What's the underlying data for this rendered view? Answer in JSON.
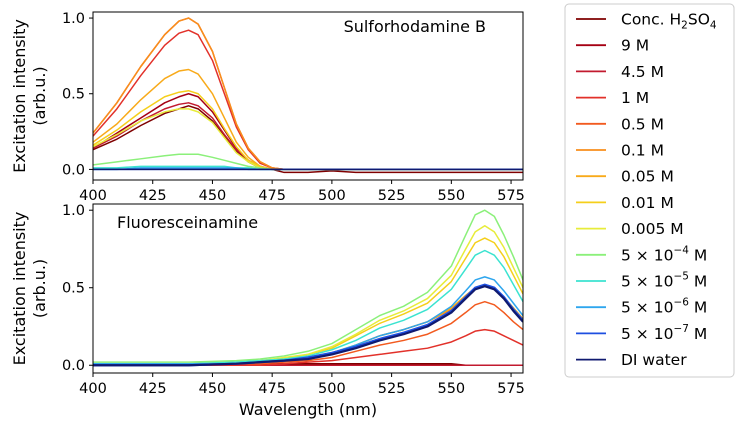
{
  "chart_data": [
    {
      "type": "line",
      "title": "Sulforhodamine B",
      "xlabel": "",
      "ylabel": [
        "Excitation intensity",
        "(arb.u.)"
      ],
      "xlim": [
        400,
        580
      ],
      "ylim": [
        -0.07,
        1.04
      ],
      "xticks": [
        "400",
        "425",
        "450",
        "475",
        "500",
        "525",
        "550",
        "575"
      ],
      "yticks": [
        "0.0",
        "0.5",
        "1.0"
      ],
      "x": [
        400,
        410,
        420,
        430,
        436,
        440,
        444,
        450,
        455,
        460,
        465,
        470,
        475,
        480,
        490,
        500,
        510,
        520,
        530,
        540,
        550,
        560,
        570,
        580
      ],
      "series": [
        {
          "name": "Conc. H2SO4",
          "color": "#7f0000",
          "values": [
            0.13,
            0.2,
            0.29,
            0.37,
            0.4,
            0.42,
            0.4,
            0.32,
            0.22,
            0.12,
            0.05,
            0.01,
            0.0,
            -0.02,
            -0.02,
            -0.01,
            -0.02,
            -0.02,
            -0.02,
            -0.02,
            -0.02,
            -0.02,
            -0.02,
            -0.02
          ]
        },
        {
          "name": "9 M",
          "color": "#a50013",
          "values": [
            0.14,
            0.24,
            0.34,
            0.44,
            0.48,
            0.5,
            0.48,
            0.38,
            0.26,
            0.14,
            0.06,
            0.02,
            0.0,
            0.0,
            0.0,
            0.0,
            0.0,
            0.0,
            0.0,
            0.0,
            0.0,
            0.0,
            0.0,
            0.0
          ]
        },
        {
          "name": "4.5 M",
          "color": "#c21a2f",
          "values": [
            0.14,
            0.22,
            0.32,
            0.4,
            0.43,
            0.44,
            0.42,
            0.34,
            0.23,
            0.13,
            0.06,
            0.02,
            0.0,
            0.0,
            0.0,
            0.0,
            0.0,
            0.0,
            0.0,
            0.0,
            0.0,
            0.0,
            0.0,
            0.0
          ]
        },
        {
          "name": "1 M",
          "color": "#e2312a",
          "values": [
            0.22,
            0.4,
            0.62,
            0.82,
            0.9,
            0.92,
            0.89,
            0.72,
            0.5,
            0.28,
            0.13,
            0.04,
            0.01,
            0.0,
            0.0,
            0.0,
            0.0,
            0.0,
            0.0,
            0.0,
            0.0,
            0.0,
            0.0,
            0.0
          ]
        },
        {
          "name": "0.5 M",
          "color": "#f25a1f",
          "values": [
            0.24,
            0.44,
            0.68,
            0.89,
            0.98,
            1.0,
            0.96,
            0.78,
            0.54,
            0.3,
            0.14,
            0.05,
            0.01,
            0.0,
            0.0,
            0.0,
            0.0,
            0.0,
            0.0,
            0.0,
            0.0,
            0.0,
            0.0,
            0.0
          ]
        },
        {
          "name": "0.1 M",
          "color": "#f88e1c",
          "values": [
            0.24,
            0.44,
            0.68,
            0.89,
            0.98,
            1.0,
            0.96,
            0.78,
            0.54,
            0.3,
            0.14,
            0.05,
            0.01,
            0.0,
            0.0,
            0.0,
            0.0,
            0.0,
            0.0,
            0.0,
            0.0,
            0.0,
            0.0,
            0.0
          ]
        },
        {
          "name": "0.05 M",
          "color": "#f8aa1a",
          "values": [
            0.18,
            0.3,
            0.46,
            0.6,
            0.65,
            0.66,
            0.63,
            0.5,
            0.34,
            0.18,
            0.08,
            0.02,
            0.0,
            0.0,
            0.0,
            0.0,
            0.0,
            0.0,
            0.0,
            0.0,
            0.0,
            0.0,
            0.0,
            0.0
          ]
        },
        {
          "name": "0.01 M",
          "color": "#f5cf1b",
          "values": [
            0.16,
            0.26,
            0.38,
            0.48,
            0.51,
            0.52,
            0.5,
            0.4,
            0.27,
            0.15,
            0.06,
            0.02,
            0.0,
            0.0,
            0.0,
            0.0,
            0.0,
            0.0,
            0.0,
            0.0,
            0.0,
            0.0,
            0.0,
            0.0
          ]
        },
        {
          "name": "0.005 M",
          "color": "#e7ec3a",
          "values": [
            0.15,
            0.23,
            0.32,
            0.38,
            0.4,
            0.4,
            0.38,
            0.31,
            0.21,
            0.11,
            0.05,
            0.01,
            0.0,
            0.0,
            0.0,
            0.0,
            0.0,
            0.0,
            0.0,
            0.0,
            0.0,
            0.0,
            0.0,
            0.0
          ]
        },
        {
          "name": "5 × 10⁻⁴ M",
          "color": "#8bf07a",
          "values": [
            0.03,
            0.05,
            0.07,
            0.09,
            0.1,
            0.1,
            0.1,
            0.08,
            0.06,
            0.04,
            0.02,
            0.01,
            0.0,
            0.0,
            0.0,
            0.0,
            0.0,
            0.0,
            0.0,
            0.0,
            0.0,
            0.0,
            0.0,
            0.0
          ]
        },
        {
          "name": "5 × 10⁻⁵ M",
          "color": "#3be3d0",
          "values": [
            0.01,
            0.01,
            0.02,
            0.02,
            0.02,
            0.02,
            0.02,
            0.02,
            0.02,
            0.01,
            0.01,
            0.0,
            0.0,
            0.0,
            0.0,
            0.0,
            0.0,
            0.0,
            0.0,
            0.0,
            0.0,
            0.0,
            0.0,
            0.0
          ]
        },
        {
          "name": "5 × 10⁻⁶ M",
          "color": "#2ea6ee",
          "values": [
            0.0,
            0.0,
            0.01,
            0.01,
            0.01,
            0.01,
            0.01,
            0.01,
            0.01,
            0.01,
            0.0,
            0.0,
            0.0,
            0.0,
            0.0,
            0.0,
            0.0,
            0.0,
            0.0,
            0.0,
            0.0,
            0.0,
            0.0,
            0.0
          ]
        },
        {
          "name": "5 × 10⁻⁷ M",
          "color": "#1e4fe0",
          "values": [
            0.0,
            0.0,
            0.0,
            0.0,
            0.0,
            0.0,
            0.0,
            0.0,
            0.0,
            0.0,
            0.0,
            0.0,
            0.0,
            0.0,
            0.0,
            0.0,
            0.0,
            0.0,
            0.0,
            0.0,
            0.0,
            0.0,
            0.0,
            0.0
          ]
        },
        {
          "name": "DI water",
          "color": "#101a70",
          "values": [
            0.0,
            0.0,
            0.0,
            0.0,
            0.0,
            0.0,
            0.0,
            0.0,
            0.0,
            0.0,
            0.0,
            0.0,
            0.0,
            0.0,
            0.0,
            0.0,
            0.0,
            0.0,
            0.0,
            0.0,
            0.0,
            0.0,
            0.0,
            0.0
          ]
        }
      ]
    },
    {
      "type": "line",
      "title": "Fluoresceinamine",
      "xlabel": "Wavelength (nm)",
      "ylabel": [
        "Excitation intensity",
        "(arb.u.)"
      ],
      "xlim": [
        400,
        580
      ],
      "ylim": [
        -0.05,
        1.04
      ],
      "xticks": [
        "400",
        "425",
        "450",
        "475",
        "500",
        "525",
        "550",
        "575"
      ],
      "yticks": [
        "0.0",
        "0.5",
        "1.0"
      ],
      "x": [
        400,
        420,
        440,
        460,
        470,
        480,
        490,
        500,
        510,
        520,
        530,
        540,
        550,
        556,
        560,
        564,
        568,
        572,
        576,
        580
      ],
      "series": [
        {
          "name": "Conc. H2SO4",
          "color": "#7f0000",
          "values": [
            0.01,
            0.01,
            0.01,
            0.01,
            0.01,
            0.01,
            0.01,
            0.01,
            0.01,
            0.01,
            0.01,
            0.01,
            0.01,
            0.0,
            0.0,
            0.0,
            0.0,
            0.0,
            0.0,
            0.0
          ]
        },
        {
          "name": "9 M",
          "color": "#a50013",
          "values": [
            0.0,
            0.0,
            0.0,
            0.0,
            0.0,
            0.0,
            0.0,
            0.0,
            0.0,
            0.0,
            0.0,
            0.0,
            0.0,
            0.0,
            0.0,
            0.0,
            0.0,
            0.0,
            0.0,
            0.0
          ]
        },
        {
          "name": "4.5 M",
          "color": "#c21a2f",
          "values": [
            0.0,
            0.0,
            0.0,
            0.0,
            0.0,
            0.0,
            0.0,
            0.0,
            0.0,
            0.0,
            0.0,
            0.0,
            0.0,
            0.0,
            0.0,
            0.0,
            0.0,
            0.0,
            0.0,
            0.0
          ]
        },
        {
          "name": "1 M",
          "color": "#e2312a",
          "values": [
            0.0,
            0.0,
            0.0,
            0.0,
            0.0,
            0.01,
            0.02,
            0.03,
            0.05,
            0.07,
            0.09,
            0.11,
            0.15,
            0.19,
            0.22,
            0.23,
            0.22,
            0.19,
            0.16,
            0.13
          ]
        },
        {
          "name": "0.5 M",
          "color": "#f25a1f",
          "values": [
            0.0,
            0.0,
            0.0,
            0.01,
            0.01,
            0.02,
            0.03,
            0.05,
            0.09,
            0.13,
            0.16,
            0.2,
            0.27,
            0.34,
            0.39,
            0.41,
            0.39,
            0.34,
            0.28,
            0.23
          ]
        },
        {
          "name": "0.1 M",
          "color": "#f88e1c",
          "values": [
            0.0,
            0.0,
            0.0,
            0.01,
            0.02,
            0.03,
            0.05,
            0.08,
            0.13,
            0.19,
            0.23,
            0.28,
            0.36,
            0.44,
            0.49,
            0.51,
            0.49,
            0.43,
            0.36,
            0.29
          ]
        },
        {
          "name": "0.05 M",
          "color": "#f8aa1a",
          "values": [
            0.0,
            0.0,
            0.0,
            0.01,
            0.02,
            0.03,
            0.05,
            0.08,
            0.13,
            0.19,
            0.23,
            0.28,
            0.37,
            0.45,
            0.5,
            0.52,
            0.5,
            0.44,
            0.37,
            0.3
          ]
        },
        {
          "name": "0.01 M",
          "color": "#f5cf1b",
          "values": [
            0.01,
            0.01,
            0.01,
            0.02,
            0.03,
            0.04,
            0.07,
            0.11,
            0.19,
            0.27,
            0.33,
            0.4,
            0.54,
            0.69,
            0.79,
            0.82,
            0.79,
            0.7,
            0.58,
            0.46
          ]
        },
        {
          "name": "0.005 M",
          "color": "#e7ec3a",
          "values": [
            0.01,
            0.01,
            0.01,
            0.02,
            0.03,
            0.05,
            0.07,
            0.12,
            0.2,
            0.29,
            0.35,
            0.43,
            0.58,
            0.75,
            0.86,
            0.9,
            0.86,
            0.76,
            0.63,
            0.5
          ]
        },
        {
          "name": "5 × 10⁻⁴ M",
          "color": "#8bf07a",
          "values": [
            0.02,
            0.02,
            0.02,
            0.03,
            0.04,
            0.06,
            0.09,
            0.14,
            0.23,
            0.32,
            0.38,
            0.47,
            0.64,
            0.84,
            0.97,
            1.0,
            0.96,
            0.84,
            0.7,
            0.55
          ]
        },
        {
          "name": "5 × 10⁻⁵ M",
          "color": "#3be3d0",
          "values": [
            0.01,
            0.01,
            0.01,
            0.02,
            0.03,
            0.04,
            0.06,
            0.1,
            0.16,
            0.24,
            0.29,
            0.36,
            0.49,
            0.62,
            0.71,
            0.74,
            0.71,
            0.63,
            0.52,
            0.41
          ]
        },
        {
          "name": "5 × 10⁻⁶ M",
          "color": "#2ea6ee",
          "values": [
            0.01,
            0.01,
            0.01,
            0.01,
            0.02,
            0.03,
            0.05,
            0.08,
            0.13,
            0.19,
            0.23,
            0.28,
            0.38,
            0.48,
            0.55,
            0.57,
            0.55,
            0.48,
            0.4,
            0.32
          ]
        },
        {
          "name": "5 × 10⁻⁷ M",
          "color": "#1e4fe0",
          "values": [
            0.0,
            0.0,
            0.0,
            0.01,
            0.02,
            0.03,
            0.05,
            0.08,
            0.12,
            0.17,
            0.21,
            0.26,
            0.35,
            0.44,
            0.5,
            0.52,
            0.5,
            0.44,
            0.36,
            0.29
          ]
        },
        {
          "name": "DI water",
          "color": "#101a70",
          "values": [
            0.0,
            0.0,
            0.0,
            0.01,
            0.02,
            0.03,
            0.04,
            0.07,
            0.11,
            0.16,
            0.2,
            0.25,
            0.34,
            0.43,
            0.49,
            0.51,
            0.49,
            0.43,
            0.35,
            0.28
          ]
        }
      ]
    }
  ],
  "legend": {
    "position": "right",
    "entries": [
      {
        "prefix": "Conc. H",
        "sub1": "2",
        "mid": "SO",
        "sub2": "4",
        "suffix": ""
      },
      {
        "prefix": "9 M"
      },
      {
        "prefix": "4.5 M"
      },
      {
        "prefix": "1 M"
      },
      {
        "prefix": "0.5 M"
      },
      {
        "prefix": "0.1 M"
      },
      {
        "prefix": "0.05 M"
      },
      {
        "prefix": "0.01 M"
      },
      {
        "prefix": "0.005 M"
      },
      {
        "prefix": "5 × 10",
        "sup": "−4",
        "suffix": " M"
      },
      {
        "prefix": "5 × 10",
        "sup": "−5",
        "suffix": " M"
      },
      {
        "prefix": "5 × 10",
        "sup": "−6",
        "suffix": " M"
      },
      {
        "prefix": "5 × 10",
        "sup": "−7",
        "suffix": " M"
      },
      {
        "prefix": "DI water"
      }
    ]
  }
}
